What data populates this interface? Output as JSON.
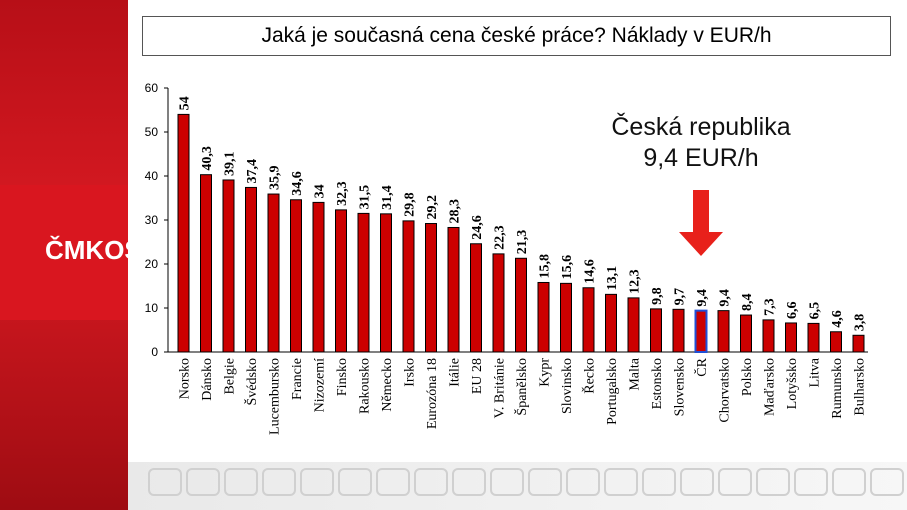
{
  "brand": {
    "text": "ČMKOS"
  },
  "chart_data": {
    "type": "bar",
    "title": "Jaká je současná cena české práce? Náklady v EUR/h",
    "categories": [
      "Norsko",
      "Dánsko",
      "Belgie",
      "Švédsko",
      "Lucembursko",
      "Francie",
      "Nizozemí",
      "Finsko",
      "Rakousko",
      "Německo",
      "Irsko",
      "Eurozóna 18",
      "Itálie",
      "EU 28",
      "V. Británie",
      "Španělsko",
      "Kypr",
      "Slovinsko",
      "Řecko",
      "Portugalsko",
      "Malta",
      "Estonsko",
      "Slovensko",
      "ČR",
      "Chorvatsko",
      "Polsko",
      "Maďarsko",
      "Lotyšsko",
      "Litva",
      "Rumunsko",
      "Bulharsko"
    ],
    "values": [
      54,
      40.3,
      39.1,
      37.4,
      35.9,
      34.6,
      34,
      32.3,
      31.5,
      31.4,
      29.8,
      29.2,
      28.3,
      24.6,
      22.3,
      21.3,
      15.8,
      15.6,
      14.6,
      13.1,
      12.3,
      9.8,
      9.7,
      9.4,
      9.4,
      8.4,
      7.3,
      6.6,
      6.5,
      4.6,
      3.8
    ],
    "value_labels": [
      "54",
      "40,3",
      "39,1",
      "37,4",
      "35,9",
      "34,6",
      "34",
      "32,3",
      "31,5",
      "31,4",
      "29,8",
      "29,2",
      "28,3",
      "24,6",
      "22,3",
      "21,3",
      "15,8",
      "15,6",
      "14,6",
      "13,1",
      "12,3",
      "9,8",
      "9,7",
      "9,4",
      "9,4",
      "8,4",
      "7,3",
      "6,6",
      "6,5",
      "4,6",
      "3,8"
    ],
    "yticks": [
      0,
      10,
      20,
      30,
      40,
      50,
      60
    ],
    "ylim": [
      0,
      60
    ],
    "xlabel": "",
    "ylabel": "",
    "grid": false,
    "highlight_index": 23,
    "colors": {
      "bar": "#cc0000",
      "bar_border": "#000000",
      "highlight": "#1f4fd6",
      "arrow": "#e8211b"
    },
    "annotation": {
      "line1": "Česká republika",
      "line2": "9,4 EUR/h"
    }
  }
}
